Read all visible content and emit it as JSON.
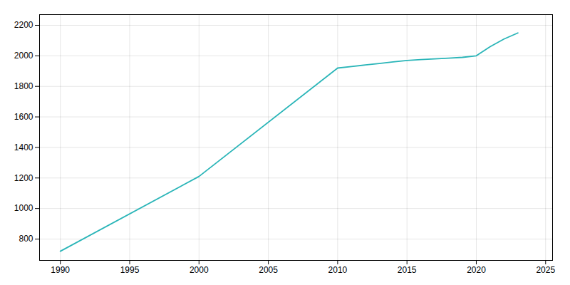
{
  "chart_data": {
    "type": "line",
    "x": [
      1990,
      2000,
      2010,
      2011,
      2012,
      2013,
      2014,
      2015,
      2016,
      2017,
      2018,
      2019,
      2020,
      2021,
      2022,
      2023
    ],
    "values": [
      720,
      1210,
      1920,
      1930,
      1940,
      1950,
      1960,
      1970,
      1975,
      1980,
      1985,
      1990,
      2000,
      2060,
      2110,
      2150
    ],
    "color": "#2ab5b8",
    "xlim": [
      1988.5,
      2025.5
    ],
    "ylim": [
      660,
      2270
    ],
    "xticks": [
      1990,
      1995,
      2000,
      2005,
      2010,
      2015,
      2020,
      2025
    ],
    "yticks": [
      800,
      1000,
      1200,
      1400,
      1600,
      1800,
      2000,
      2200
    ],
    "grid": true
  }
}
